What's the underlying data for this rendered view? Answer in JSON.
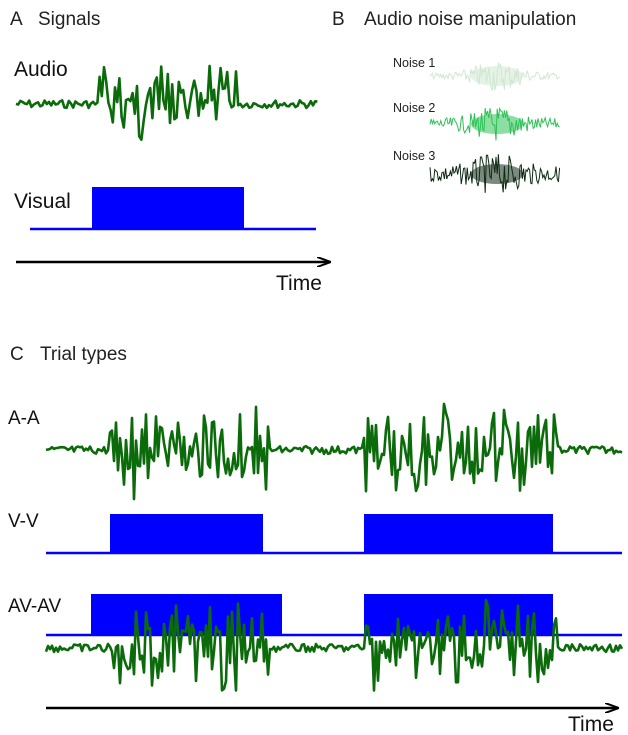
{
  "panel_a": {
    "letter": "A",
    "title": "Signals",
    "audio_label": "Audio",
    "visual_label": "Visual",
    "time_label": "Time"
  },
  "panel_b": {
    "letter": "B",
    "title": "Audio noise manipulation",
    "noise_labels": [
      "Noise 1",
      "Noise 2",
      "Noise 3"
    ],
    "noise_colors": [
      "#cfe8d2",
      "#2ec256",
      "#0f2a14"
    ]
  },
  "panel_c": {
    "letter": "C",
    "title": "Trial types",
    "rows": [
      "A-A",
      "V-V",
      "AV-AV"
    ],
    "time_label": "Time"
  },
  "colors": {
    "audio": "#0b6b0b",
    "visual": "#0000ff",
    "axis": "#000000"
  }
}
